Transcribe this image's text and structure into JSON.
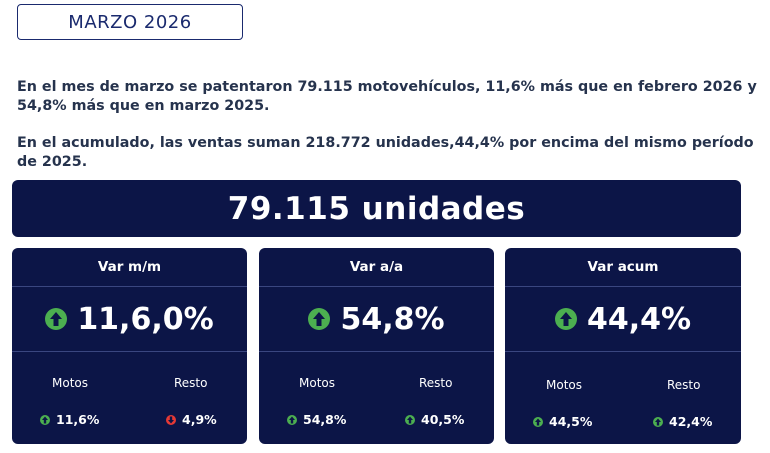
{
  "header": {
    "month_label": "MARZO 2026"
  },
  "summary": {
    "paragraph_1": "En el mes de marzo se patentaron 79.115 motovehículos, 11,6% más que en febrero 2026 y 54,8% más que en marzo 2025.",
    "paragraph_2": "En el acumulado, las ventas suman 218.772 unidades,44,4% por encima del mismo período de 2025."
  },
  "total": {
    "label": "79.115 unidades"
  },
  "colors": {
    "navy": "#0c1547",
    "up_green": "#4caf50",
    "down_red": "#e53935"
  },
  "cards": [
    {
      "title": "Var m/m",
      "value": "11,6,0%",
      "trend": "up",
      "sub": [
        {
          "label": "Motos",
          "value": "11,6%",
          "trend": "up"
        },
        {
          "label": "Resto",
          "value": "4,9%",
          "trend": "down"
        }
      ]
    },
    {
      "title": "Var a/a",
      "value": "54,8%",
      "trend": "up",
      "sub": [
        {
          "label": "Motos",
          "value": "54,8%",
          "trend": "up"
        },
        {
          "label": "Resto",
          "value": "40,5%",
          "trend": "up"
        }
      ]
    },
    {
      "title": "Var acum",
      "value": "44,4%",
      "trend": "up",
      "sub": [
        {
          "label": "Motos",
          "value": "44,5%",
          "trend": "up"
        },
        {
          "label": "Resto",
          "value": "42,4%",
          "trend": "up"
        }
      ]
    }
  ]
}
